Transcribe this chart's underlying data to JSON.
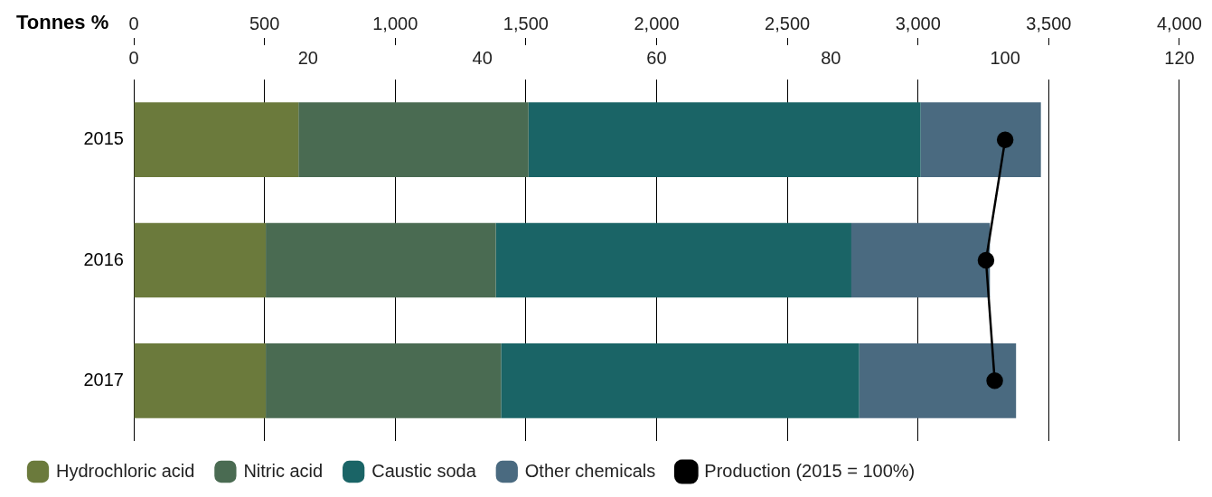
{
  "chart_data": {
    "type": "bar",
    "orientation": "horizontal",
    "stacked": true,
    "xlabel": "Tonnes",
    "x2label": "%",
    "categories": [
      "2015",
      "2016",
      "2017"
    ],
    "series": [
      {
        "name": "Hydrochloric acid",
        "color": "#6b7a3c",
        "values": [
          630,
          505,
          505
        ]
      },
      {
        "name": "Nitric acid",
        "color": "#4a6b52",
        "values": [
          880,
          880,
          900
        ]
      },
      {
        "name": "Caustic soda",
        "color": "#1a6466",
        "values": [
          1500,
          1360,
          1370
        ]
      },
      {
        "name": "Other chemicals",
        "color": "#4a6a80",
        "values": [
          460,
          530,
          600
        ]
      },
      {
        "name": "Production (2015 = 100%)",
        "type": "line",
        "axis": "x2",
        "color": "#000000",
        "values": [
          100,
          97.8,
          98.8
        ]
      }
    ],
    "xlim": [
      0,
      4000
    ],
    "xticks": [
      0,
      500,
      {
        "value": 1000,
        "label": "1,000"
      },
      {
        "value": 1500,
        "label": "1,500"
      },
      {
        "value": 2000,
        "label": "2,000"
      },
      {
        "value": 2500,
        "label": "2,500"
      },
      {
        "value": 3000,
        "label": "3,000"
      },
      {
        "value": 3500,
        "label": "3,500"
      },
      {
        "value": 4000,
        "label": "4,000"
      }
    ],
    "x2lim": [
      0,
      120
    ],
    "x2ticks": [
      0,
      20,
      40,
      60,
      80,
      100,
      120
    ],
    "grid": "x",
    "legend": "bottom",
    "marker": "circle",
    "line_style": "solid"
  }
}
